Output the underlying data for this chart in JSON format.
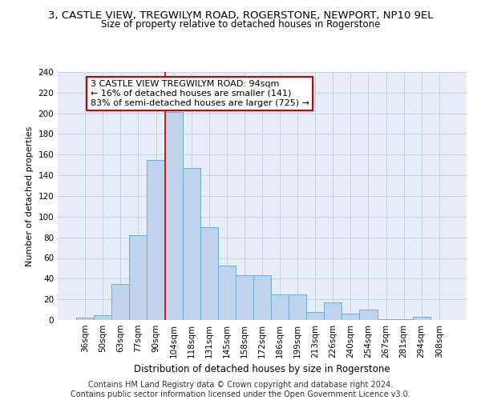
{
  "title_line1": "3, CASTLE VIEW, TREGWILYM ROAD, ROGERSTONE, NEWPORT, NP10 9EL",
  "title_line2": "Size of property relative to detached houses in Rogerstone",
  "xlabel": "Distribution of detached houses by size in Rogerstone",
  "ylabel": "Number of detached properties",
  "categories": [
    "36sqm",
    "50sqm",
    "63sqm",
    "77sqm",
    "90sqm",
    "104sqm",
    "118sqm",
    "131sqm",
    "145sqm",
    "158sqm",
    "172sqm",
    "186sqm",
    "199sqm",
    "213sqm",
    "226sqm",
    "240sqm",
    "254sqm",
    "267sqm",
    "281sqm",
    "294sqm",
    "308sqm"
  ],
  "values": [
    2,
    5,
    35,
    82,
    155,
    201,
    147,
    90,
    53,
    43,
    43,
    25,
    25,
    8,
    17,
    6,
    10,
    1,
    1,
    3,
    0
  ],
  "bar_color": "#bfd4ec",
  "bar_edge_color": "#6baed6",
  "bar_edge_width": 0.7,
  "red_line_x": 4.5,
  "annotation_text": "3 CASTLE VIEW TREGWILYM ROAD: 94sqm\n← 16% of detached houses are smaller (141)\n83% of semi-detached houses are larger (725) →",
  "annotation_box_color": "white",
  "annotation_border_color": "#cc0000",
  "annotation_fontsize": 8,
  "grid_color": "#c8d4e4",
  "background_color": "#e8eef8",
  "ylim": [
    0,
    240
  ],
  "yticks": [
    0,
    20,
    40,
    60,
    80,
    100,
    120,
    140,
    160,
    180,
    200,
    220,
    240
  ],
  "footer_line1": "Contains HM Land Registry data © Crown copyright and database right 2024.",
  "footer_line2": "Contains public sector information licensed under the Open Government Licence v3.0.",
  "title1_fontsize": 9.5,
  "title2_fontsize": 8.5,
  "xlabel_fontsize": 8.5,
  "ylabel_fontsize": 8,
  "tick_fontsize": 7.5,
  "footer_fontsize": 7
}
